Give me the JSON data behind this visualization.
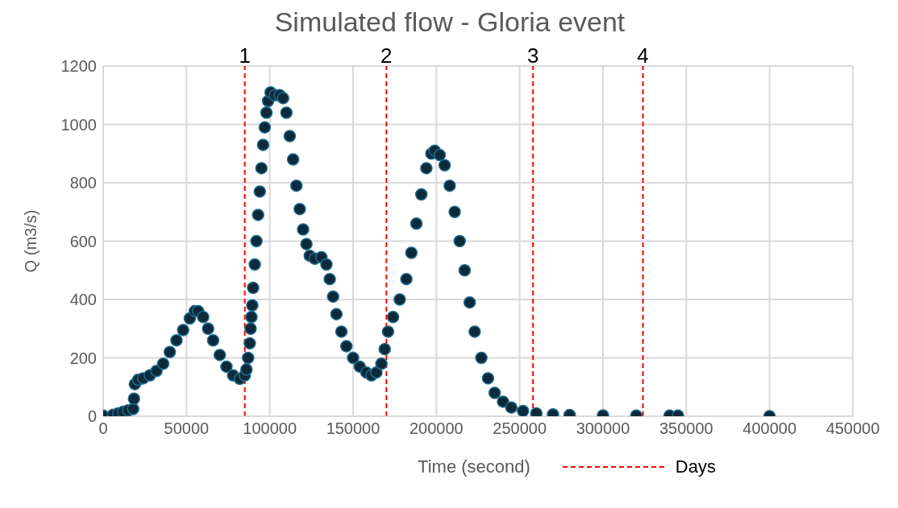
{
  "chart_data": {
    "type": "scatter",
    "title": "Simulated flow - Gloria event",
    "xlabel": "Time (second)",
    "ylabel": "Q (m3/s)",
    "marker": "circle",
    "grid": true,
    "xlim": [
      0,
      450000
    ],
    "xticks": [
      0,
      50000,
      100000,
      150000,
      200000,
      250000,
      300000,
      350000,
      400000,
      450000
    ],
    "ylim": [
      0,
      1200
    ],
    "yticks": [
      0,
      200,
      400,
      600,
      800,
      1000,
      1200
    ],
    "ref_lines": [
      {
        "axis": "x",
        "value": 85000,
        "color": "#ff0000",
        "line_style": "dashed"
      },
      {
        "axis": "x",
        "value": 170000,
        "color": "#ff0000",
        "line_style": "dashed"
      },
      {
        "axis": "x",
        "value": 258000,
        "color": "#ff0000",
        "line_style": "dashed"
      },
      {
        "axis": "x",
        "value": 324000,
        "color": "#ff0000",
        "line_style": "dashed"
      }
    ],
    "annotations": [
      "Days",
      {
        "text": "1",
        "x": 85000,
        "y": 1200
      },
      {
        "text": "2",
        "x": 170000,
        "y": 1200
      },
      {
        "text": "3",
        "x": 258000,
        "y": 1200
      },
      {
        "text": "4",
        "x": 324000,
        "y": 1200
      }
    ],
    "series": [
      {
        "color": "#0d2a3a",
        "x": [
          0,
          6000,
          9000,
          12000,
          15000,
          18000,
          18500,
          19000,
          21000,
          24000,
          28000,
          32000,
          36000,
          40000,
          44000,
          48000,
          52000,
          55000,
          57000,
          60000,
          63000,
          66000,
          70000,
          74000,
          78000,
          82000,
          85000,
          86000,
          87000,
          88000,
          88500,
          89000,
          89500,
          90000,
          91000,
          92000,
          93000,
          94000,
          95000,
          96000,
          97000,
          98000,
          99000,
          100500,
          103000,
          106000,
          108000,
          110000,
          112000,
          114000,
          116000,
          118000,
          120000,
          122000,
          124000,
          127000,
          131000,
          134000,
          136000,
          138000,
          140000,
          143000,
          146000,
          150000,
          154000,
          158000,
          161000,
          164000,
          167000,
          169000,
          171000,
          174000,
          178000,
          182000,
          185000,
          188000,
          191000,
          194000,
          197000,
          199000,
          202000,
          205000,
          208000,
          211000,
          214000,
          217000,
          220000,
          223000,
          227000,
          231000,
          235000,
          240000,
          245000,
          252000,
          260000,
          270000,
          280000,
          300000,
          320000,
          340000,
          345000,
          400000
        ],
        "values": [
          2,
          5,
          10,
          15,
          20,
          25,
          60,
          110,
          125,
          130,
          140,
          155,
          180,
          220,
          260,
          295,
          335,
          360,
          360,
          340,
          300,
          260,
          210,
          170,
          140,
          128,
          140,
          160,
          200,
          250,
          300,
          340,
          380,
          440,
          520,
          600,
          690,
          770,
          850,
          930,
          990,
          1040,
          1080,
          1110,
          1100,
          1100,
          1090,
          1040,
          960,
          880,
          790,
          710,
          640,
          590,
          550,
          540,
          545,
          520,
          470,
          410,
          350,
          290,
          240,
          200,
          170,
          150,
          140,
          150,
          180,
          230,
          290,
          340,
          400,
          470,
          560,
          660,
          760,
          850,
          900,
          910,
          895,
          860,
          790,
          700,
          600,
          500,
          390,
          290,
          200,
          130,
          80,
          50,
          30,
          18,
          10,
          6,
          4,
          3,
          2,
          2,
          2,
          0
        ]
      }
    ]
  }
}
